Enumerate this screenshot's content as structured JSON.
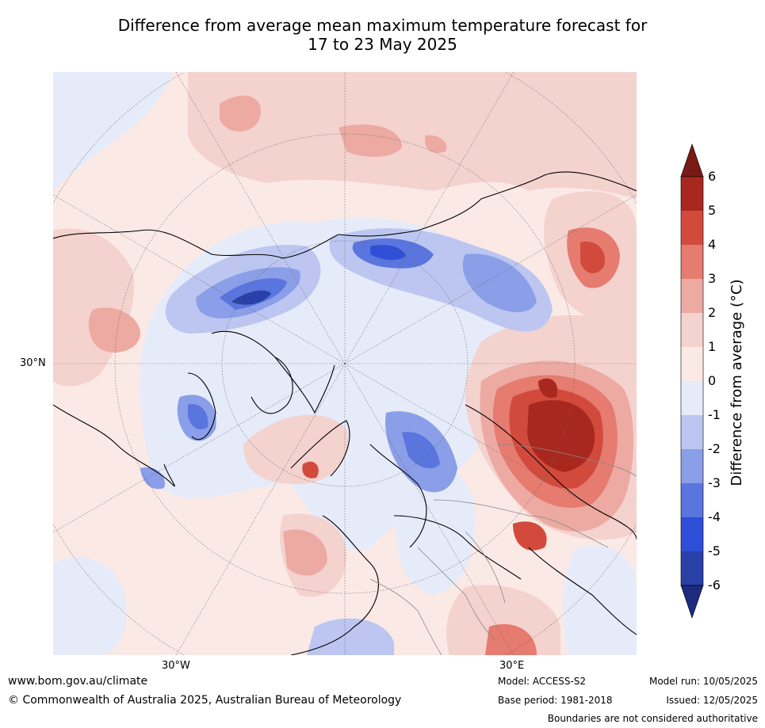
{
  "title": {
    "line1": "Difference from average mean maximum temperature forecast for",
    "line2": "17 to 23 May 2025"
  },
  "map": {
    "projection": "north-polar-stereographic",
    "labels": {
      "lat_30n": "30°N",
      "lon_30w": "30°W",
      "lon_30e": "30°E"
    }
  },
  "colorbar": {
    "label": "Difference from average (°C)",
    "ticks": [
      "6",
      "5",
      "4",
      "3",
      "2",
      "1",
      "0",
      "-1",
      "-2",
      "-3",
      "-4",
      "-5",
      "-6"
    ],
    "colors": {
      "above_6": "#7a1a14",
      "5_6": "#a82820",
      "4_5": "#d24a3c",
      "3_4": "#e67b70",
      "2_3": "#edaaa2",
      "1_2": "#f4d2ce",
      "0_1": "#fbe9e6",
      "m1_0": "#e6ebfa",
      "m2_m1": "#bcc6f0",
      "m3_m2": "#8b9ee8",
      "m4_m3": "#5a75de",
      "m5_m4": "#2f4fd8",
      "m6_m5": "#2940a8",
      "below_m6": "#1c2a80"
    }
  },
  "footer": {
    "url": "www.bom.gov.au/climate",
    "copyright": "© Commonwealth of Australia 2025, Australian Bureau of Meteorology",
    "model": "Model: ACCESS-S2",
    "base_period": "Base period: 1981-2018",
    "model_run": "Model run: 10/05/2025",
    "issued": "Issued: 12/05/2025",
    "disclaimer": "Boundaries are not considered authoritative"
  }
}
